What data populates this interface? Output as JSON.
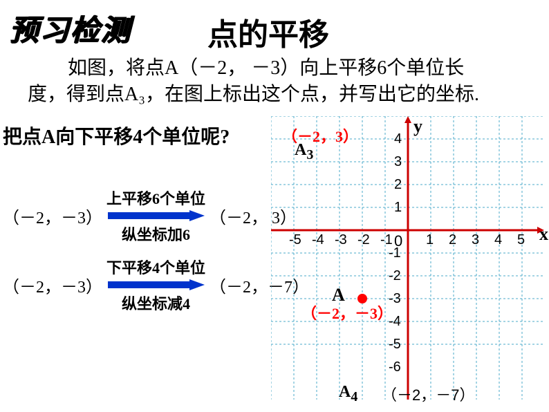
{
  "badge": "预习检测",
  "title": "点的平移",
  "description_line1": "如图，将点A（－2， －3）向上平移6个单位长",
  "description_line2": "度，得到点A₃，在图上标出这个点，并写出它的坐标.",
  "question": "把点A向下平移4个单位呢?",
  "transform1": {
    "from": "（－2，－3）",
    "label_above": "上平移6个单位",
    "label_below": "纵坐标加6",
    "to": "（－2， 3）"
  },
  "transform2": {
    "from": "（－2，－3）",
    "label_above": "下平移4个单位",
    "label_below": "纵坐标减4",
    "to": "（－2，－7）"
  },
  "chart": {
    "grid_color": "#4aa8c8",
    "axis_color": "#cc0000",
    "arrow_color": "#0033cc",
    "text_color": "#000000",
    "red_text_color": "#ff0000",
    "cell_size": 33,
    "x_range": [
      -5,
      5
    ],
    "y_range": [
      -6,
      4
    ],
    "x_ticks": [
      "-5",
      "-4",
      "-3",
      "-2",
      "-1",
      "0",
      "1",
      "2",
      "3",
      "4",
      "5"
    ],
    "y_ticks_pos": [
      "4",
      "3",
      "2",
      "1"
    ],
    "y_ticks_neg": [
      "-1",
      "-2",
      "-3",
      "-4",
      "-5",
      "-6"
    ],
    "x_axis_label": "x",
    "y_axis_label": "y",
    "points": {
      "A": {
        "x": -2,
        "y": -3,
        "label": "A",
        "coord": "（－2，－3）"
      },
      "A3": {
        "x": -2,
        "y": 3,
        "label": "A₃",
        "coord": "（－2，3）"
      },
      "A4": {
        "x": -2,
        "y": -7,
        "label": "A₄",
        "coord": "（－2，－7）"
      }
    }
  }
}
